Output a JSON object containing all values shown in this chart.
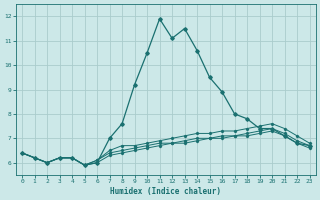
{
  "title": "",
  "xlabel": "Humidex (Indice chaleur)",
  "ylabel": "",
  "bg_color": "#cce8e8",
  "grid_color": "#aacccc",
  "line_color": "#1a7070",
  "xlim": [
    -0.5,
    23.5
  ],
  "ylim": [
    5.5,
    12.5
  ],
  "xticks": [
    0,
    1,
    2,
    3,
    4,
    5,
    6,
    7,
    8,
    9,
    10,
    11,
    12,
    13,
    14,
    15,
    16,
    17,
    18,
    19,
    20,
    21,
    22,
    23
  ],
  "yticks": [
    6,
    7,
    8,
    9,
    10,
    11,
    12
  ],
  "lines": [
    [
      6.4,
      6.2,
      6.0,
      6.2,
      6.2,
      5.9,
      6.0,
      7.0,
      7.6,
      9.2,
      10.5,
      11.9,
      11.1,
      11.5,
      10.6,
      9.5,
      8.9,
      8.0,
      7.8,
      7.4,
      7.4,
      7.1,
      6.8,
      6.7
    ],
    [
      6.4,
      6.2,
      6.0,
      6.2,
      6.2,
      5.9,
      6.1,
      6.5,
      6.7,
      6.7,
      6.8,
      6.9,
      7.0,
      7.1,
      7.2,
      7.2,
      7.3,
      7.3,
      7.4,
      7.5,
      7.6,
      7.4,
      7.1,
      6.8
    ],
    [
      6.4,
      6.2,
      6.0,
      6.2,
      6.2,
      5.9,
      6.1,
      6.4,
      6.5,
      6.6,
      6.7,
      6.8,
      6.8,
      6.9,
      7.0,
      7.0,
      7.1,
      7.1,
      7.2,
      7.3,
      7.4,
      7.2,
      6.9,
      6.7
    ],
    [
      6.4,
      6.2,
      6.0,
      6.2,
      6.2,
      5.9,
      6.0,
      6.3,
      6.4,
      6.5,
      6.6,
      6.7,
      6.8,
      6.8,
      6.9,
      7.0,
      7.0,
      7.1,
      7.1,
      7.2,
      7.3,
      7.1,
      6.8,
      6.6
    ]
  ]
}
